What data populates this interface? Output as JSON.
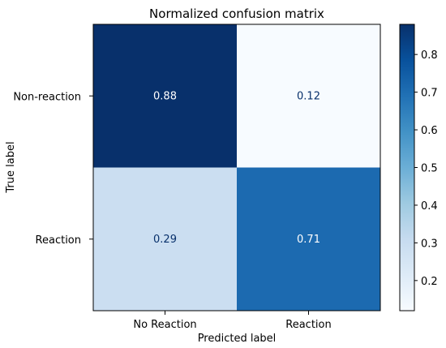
{
  "chart_data": {
    "type": "heatmap",
    "title": "Normalized confusion matrix",
    "xlabel": "Predicted label",
    "ylabel": "True label",
    "x_categories": [
      "No Reaction",
      "Reaction"
    ],
    "y_categories": [
      "Non-reaction",
      "Reaction"
    ],
    "values": [
      [
        0.88,
        0.12
      ],
      [
        0.29,
        0.71
      ]
    ],
    "value_labels": [
      [
        "0.88",
        "0.12"
      ],
      [
        "0.29",
        "0.71"
      ]
    ],
    "colormap": "Blues",
    "colorbar": {
      "range": [
        0.12,
        0.88
      ],
      "ticks": [
        0.2,
        0.3,
        0.4,
        0.5,
        0.6,
        0.7,
        0.8
      ],
      "tick_labels": [
        "0.2",
        "0.3",
        "0.4",
        "0.5",
        "0.6",
        "0.7",
        "0.8"
      ]
    }
  }
}
